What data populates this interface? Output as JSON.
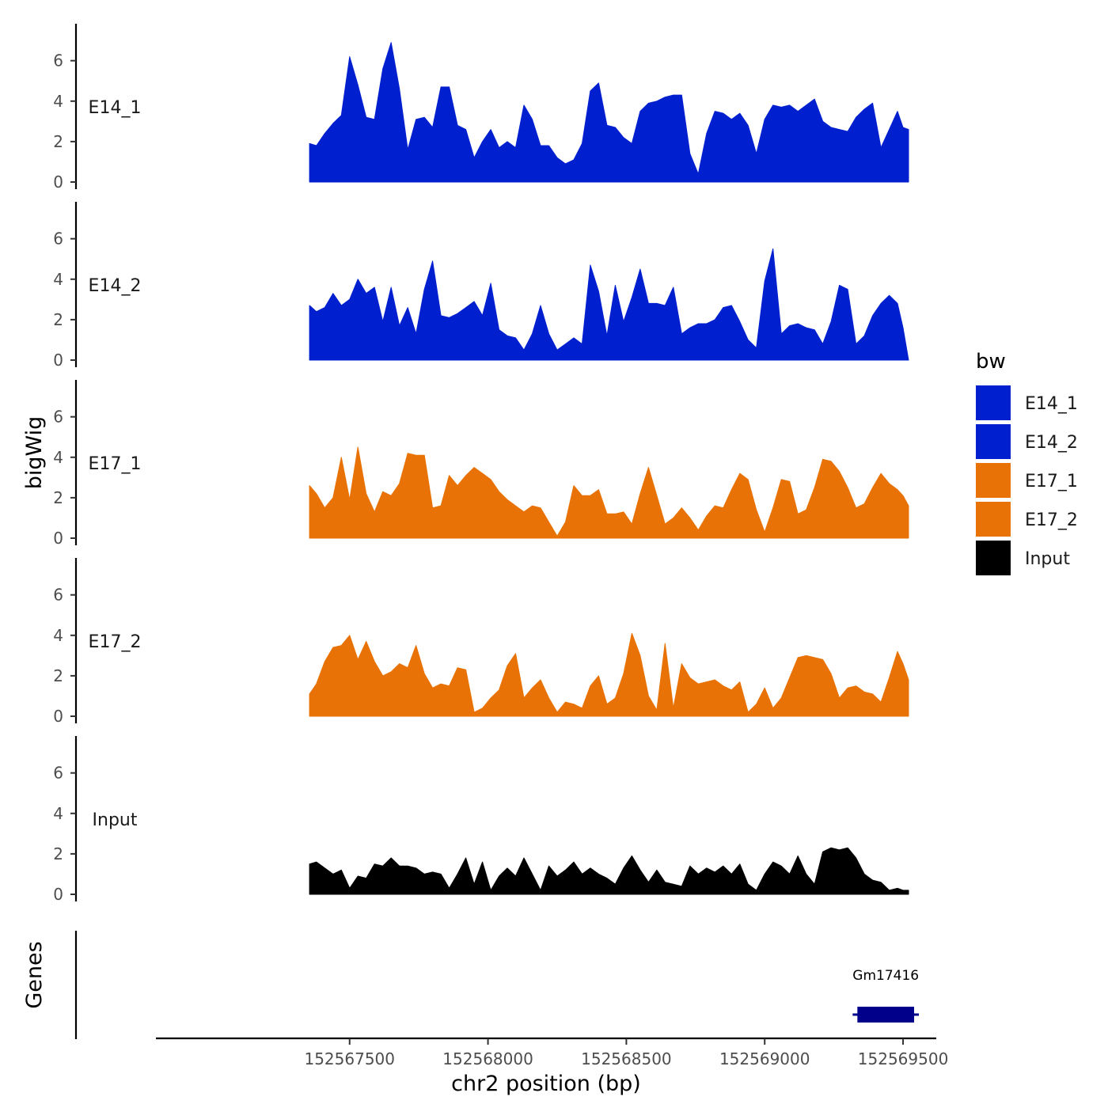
{
  "chart_data": {
    "type": "area",
    "ylabel": "bigWig",
    "genes_label": "Genes",
    "xlabel": "chr2 position (bp)",
    "xlim": [
      152566800,
      152569620
    ],
    "ylim": [
      0,
      7.2
    ],
    "y_ticks": [
      "0",
      "2",
      "4",
      "6"
    ],
    "x_ticks": [
      {
        "value": 152567500,
        "label": "152567500"
      },
      {
        "value": 152568000,
        "label": "152568000"
      },
      {
        "value": 152568500,
        "label": "152568500"
      },
      {
        "value": 152569000,
        "label": "152569000"
      },
      {
        "value": 152569500,
        "label": "152569500"
      }
    ],
    "legend": {
      "title": "bw",
      "entries": [
        {
          "label": "E14_1",
          "color": "#0020D0"
        },
        {
          "label": "E14_2",
          "color": "#0020D0"
        },
        {
          "label": "E17_1",
          "color": "#E87205"
        },
        {
          "label": "E17_2",
          "color": "#E87205"
        },
        {
          "label": "Input",
          "color": "#000000"
        }
      ]
    },
    "series": [
      {
        "name": "E14_1",
        "color": "#0020D0",
        "x": [
          152567355,
          152567380,
          152567410,
          152567440,
          152567470,
          152567500,
          152567530,
          152567560,
          152567590,
          152567620,
          152567650,
          152567680,
          152567710,
          152567740,
          152567770,
          152567800,
          152567830,
          152567860,
          152567890,
          152567920,
          152567950,
          152567980,
          152568010,
          152568040,
          152568070,
          152568100,
          152568130,
          152568160,
          152568190,
          152568220,
          152568250,
          152568280,
          152568310,
          152568340,
          152568370,
          152568400,
          152568430,
          152568460,
          152568490,
          152568520,
          152568550,
          152568580,
          152568610,
          152568640,
          152568670,
          152568700,
          152568730,
          152568760,
          152568790,
          152568820,
          152568850,
          152568880,
          152568910,
          152568940,
          152568970,
          152569000,
          152569030,
          152569060,
          152569090,
          152569120,
          152569150,
          152569180,
          152569210,
          152569240,
          152569270,
          152569300,
          152569330,
          152569360,
          152569390,
          152569420,
          152569450,
          152569480,
          152569500,
          152569520
        ],
        "values": [
          1.9,
          1.8,
          2.4,
          2.9,
          3.3,
          6.2,
          4.8,
          3.2,
          3.1,
          5.6,
          6.9,
          4.6,
          1.6,
          3.1,
          3.2,
          2.7,
          4.7,
          4.7,
          2.8,
          2.6,
          1.2,
          2.0,
          2.6,
          1.7,
          2.0,
          1.7,
          3.8,
          3.1,
          1.8,
          1.8,
          1.2,
          0.9,
          1.1,
          1.9,
          4.5,
          4.9,
          2.8,
          2.7,
          2.2,
          1.9,
          3.5,
          3.9,
          4.0,
          4.2,
          4.3,
          4.3,
          1.4,
          0.4,
          2.4,
          3.5,
          3.4,
          3.1,
          3.4,
          2.8,
          1.4,
          3.1,
          3.8,
          3.7,
          3.8,
          3.5,
          3.8,
          4.1,
          3.0,
          2.7,
          2.6,
          2.5,
          3.2,
          3.6,
          3.9,
          1.7,
          2.6,
          3.5,
          2.7,
          2.6
        ]
      },
      {
        "name": "E14_2",
        "color": "#0020D0",
        "x": [
          152567355,
          152567380,
          152567410,
          152567440,
          152567470,
          152567500,
          152567530,
          152567560,
          152567590,
          152567620,
          152567650,
          152567680,
          152567710,
          152567740,
          152567770,
          152567800,
          152567830,
          152567860,
          152567890,
          152567920,
          152567950,
          152567980,
          152568010,
          152568040,
          152568070,
          152568100,
          152568130,
          152568160,
          152568190,
          152568220,
          152568250,
          152568280,
          152568310,
          152568340,
          152568370,
          152568400,
          152568430,
          152568460,
          152568490,
          152568520,
          152568550,
          152568580,
          152568610,
          152568640,
          152568670,
          152568700,
          152568730,
          152568760,
          152568790,
          152568820,
          152568850,
          152568880,
          152568910,
          152568940,
          152568970,
          152569000,
          152569030,
          152569060,
          152569090,
          152569120,
          152569150,
          152569180,
          152569210,
          152569240,
          152569270,
          152569300,
          152569330,
          152569360,
          152569390,
          152569420,
          152569450,
          152569480,
          152569500,
          152569520
        ],
        "values": [
          2.7,
          2.4,
          2.6,
          3.3,
          2.7,
          3.0,
          4.0,
          3.3,
          3.6,
          1.9,
          3.6,
          1.7,
          2.6,
          1.3,
          3.5,
          4.9,
          2.2,
          2.1,
          2.3,
          2.6,
          2.9,
          2.2,
          3.8,
          1.5,
          1.2,
          1.1,
          0.5,
          1.3,
          2.7,
          1.3,
          0.5,
          0.8,
          1.1,
          0.8,
          4.7,
          3.4,
          1.2,
          3.7,
          1.9,
          3.1,
          4.5,
          2.8,
          2.8,
          2.7,
          3.6,
          1.3,
          1.6,
          1.8,
          1.8,
          2.0,
          2.6,
          2.7,
          1.9,
          1.0,
          0.6,
          3.9,
          5.5,
          1.3,
          1.7,
          1.8,
          1.6,
          1.5,
          0.8,
          1.9,
          3.7,
          3.5,
          0.8,
          1.2,
          2.2,
          2.8,
          3.2,
          2.8,
          1.6,
          0.0
        ]
      },
      {
        "name": "E17_1",
        "color": "#E87205",
        "x": [
          152567355,
          152567380,
          152567410,
          152567440,
          152567470,
          152567500,
          152567530,
          152567560,
          152567590,
          152567620,
          152567650,
          152567680,
          152567710,
          152567740,
          152567770,
          152567800,
          152567830,
          152567860,
          152567890,
          152567920,
          152567950,
          152567980,
          152568010,
          152568040,
          152568070,
          152568100,
          152568130,
          152568160,
          152568190,
          152568220,
          152568250,
          152568280,
          152568310,
          152568340,
          152568370,
          152568400,
          152568430,
          152568460,
          152568490,
          152568520,
          152568550,
          152568580,
          152568610,
          152568640,
          152568670,
          152568700,
          152568730,
          152568760,
          152568790,
          152568820,
          152568850,
          152568880,
          152568910,
          152568940,
          152568970,
          152569000,
          152569030,
          152569060,
          152569090,
          152569120,
          152569150,
          152569180,
          152569210,
          152569240,
          152569270,
          152569300,
          152569330,
          152569360,
          152569390,
          152569420,
          152569450,
          152569480,
          152569500,
          152569520
        ],
        "values": [
          2.6,
          2.2,
          1.5,
          2.0,
          4.0,
          1.9,
          4.5,
          2.2,
          1.3,
          2.3,
          2.1,
          2.7,
          4.2,
          4.1,
          4.1,
          1.5,
          1.6,
          3.1,
          2.6,
          3.1,
          3.5,
          3.2,
          2.9,
          2.3,
          1.9,
          1.6,
          1.3,
          1.6,
          1.5,
          0.8,
          0.1,
          0.8,
          2.6,
          2.1,
          2.1,
          2.4,
          1.2,
          1.2,
          1.3,
          0.7,
          2.2,
          3.5,
          2.1,
          0.7,
          1.0,
          1.5,
          1.0,
          0.4,
          1.1,
          1.6,
          1.5,
          2.4,
          3.2,
          2.9,
          1.4,
          0.3,
          1.5,
          2.9,
          2.8,
          1.2,
          1.4,
          2.5,
          3.9,
          3.8,
          3.3,
          2.5,
          1.5,
          1.7,
          2.5,
          3.2,
          2.7,
          2.4,
          2.1,
          1.6
        ]
      },
      {
        "name": "E17_2",
        "color": "#E87205",
        "x": [
          152567355,
          152567380,
          152567410,
          152567440,
          152567470,
          152567500,
          152567530,
          152567560,
          152567590,
          152567620,
          152567650,
          152567680,
          152567710,
          152567740,
          152567770,
          152567800,
          152567830,
          152567860,
          152567890,
          152567920,
          152567950,
          152567980,
          152568010,
          152568040,
          152568070,
          152568100,
          152568130,
          152568160,
          152568190,
          152568220,
          152568250,
          152568280,
          152568310,
          152568340,
          152568370,
          152568400,
          152568430,
          152568460,
          152568490,
          152568520,
          152568550,
          152568580,
          152568610,
          152568640,
          152568670,
          152568700,
          152568730,
          152568760,
          152568790,
          152568820,
          152568850,
          152568880,
          152568910,
          152568940,
          152568970,
          152569000,
          152569030,
          152569060,
          152569090,
          152569120,
          152569150,
          152569180,
          152569210,
          152569240,
          152569270,
          152569300,
          152569330,
          152569360,
          152569390,
          152569420,
          152569450,
          152569480,
          152569500,
          152569520
        ],
        "values": [
          1.1,
          1.6,
          2.7,
          3.4,
          3.5,
          4.0,
          2.8,
          3.7,
          2.7,
          2.0,
          2.2,
          2.6,
          2.4,
          3.5,
          2.1,
          1.4,
          1.6,
          1.5,
          2.4,
          2.3,
          0.2,
          0.4,
          0.9,
          1.3,
          2.5,
          3.1,
          0.9,
          1.4,
          1.8,
          0.9,
          0.2,
          0.7,
          0.6,
          0.4,
          1.5,
          2.0,
          0.6,
          0.9,
          2.1,
          4.1,
          3.0,
          1.0,
          0.3,
          3.6,
          0.4,
          2.6,
          1.9,
          1.6,
          1.7,
          1.8,
          1.5,
          1.3,
          1.7,
          0.2,
          0.6,
          1.4,
          0.4,
          0.9,
          1.9,
          2.9,
          3.0,
          2.9,
          2.8,
          2.1,
          0.9,
          1.4,
          1.5,
          1.2,
          1.1,
          0.7,
          1.9,
          3.2,
          2.6,
          1.8
        ]
      },
      {
        "name": "Input",
        "color": "#000000",
        "x": [
          152567355,
          152567380,
          152567410,
          152567440,
          152567470,
          152567500,
          152567530,
          152567560,
          152567590,
          152567620,
          152567650,
          152567680,
          152567710,
          152567740,
          152567770,
          152567800,
          152567830,
          152567860,
          152567890,
          152567920,
          152567950,
          152567980,
          152568010,
          152568040,
          152568070,
          152568100,
          152568130,
          152568160,
          152568190,
          152568220,
          152568250,
          152568280,
          152568310,
          152568340,
          152568370,
          152568400,
          152568430,
          152568460,
          152568490,
          152568520,
          152568550,
          152568580,
          152568610,
          152568640,
          152568670,
          152568700,
          152568730,
          152568760,
          152568790,
          152568820,
          152568850,
          152568880,
          152568910,
          152568940,
          152568970,
          152569000,
          152569030,
          152569060,
          152569090,
          152569120,
          152569150,
          152569180,
          152569210,
          152569240,
          152569270,
          152569300,
          152569330,
          152569360,
          152569390,
          152569420,
          152569450,
          152569480,
          152569500,
          152569520
        ],
        "values": [
          1.5,
          1.6,
          1.3,
          1.0,
          1.2,
          0.3,
          0.9,
          0.8,
          1.5,
          1.4,
          1.8,
          1.4,
          1.4,
          1.3,
          1.0,
          1.1,
          1.0,
          0.3,
          1.0,
          1.8,
          0.5,
          1.6,
          0.2,
          0.9,
          1.3,
          0.9,
          1.8,
          1.0,
          0.2,
          1.4,
          0.9,
          1.2,
          1.6,
          1.0,
          1.3,
          1.0,
          0.8,
          0.5,
          1.3,
          1.9,
          1.2,
          0.6,
          1.2,
          0.6,
          0.5,
          0.4,
          1.4,
          1.0,
          1.3,
          1.1,
          1.4,
          1.0,
          1.5,
          0.5,
          0.2,
          1.0,
          1.6,
          1.4,
          1.0,
          1.9,
          1.0,
          0.5,
          2.1,
          2.3,
          2.2,
          2.3,
          1.8,
          1.0,
          0.7,
          0.6,
          0.2,
          0.3,
          0.2,
          0.2
        ]
      }
    ],
    "genes": [
      {
        "name": "Gm17416",
        "start": 152569335,
        "end": 152569540,
        "color": "#00008B"
      }
    ]
  }
}
